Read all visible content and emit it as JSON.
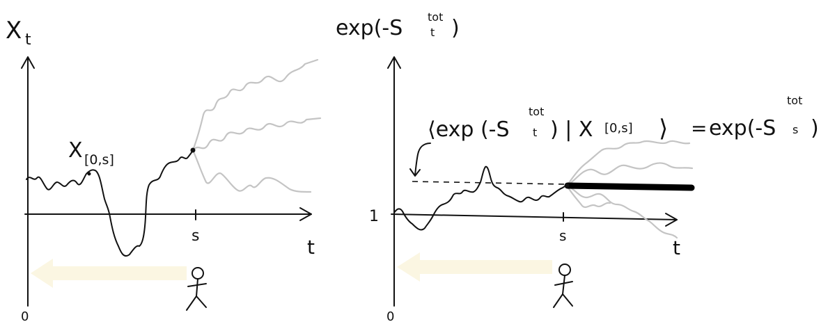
{
  "left_panel": {
    "y_label_main": "X",
    "y_label_sub": "t",
    "x_label": "t",
    "origin_label": "0",
    "s_label": "s",
    "path_label_main": "X",
    "path_label_sub": "[0,s]"
  },
  "right_panel": {
    "y_label_prefix": "exp(-S",
    "y_label_sup": "tot",
    "y_label_sub": "t",
    "y_label_suffix": ")",
    "x_label": "t",
    "origin_label": "0",
    "one_label": "1",
    "s_label": "s",
    "annot_lhs_open": "⟨exp (-S",
    "annot_lhs_sup": "tot",
    "annot_lhs_sub": "t",
    "annot_lhs_mid": ") | X",
    "annot_lhs_cond_sub": "[0,s]",
    "annot_lhs_close": "⟩",
    "annot_eq": "=",
    "annot_rhs_prefix": "exp(-S",
    "annot_rhs_sup": "tot",
    "annot_rhs_sub": "s",
    "annot_rhs_suffix": ")"
  },
  "colors": {
    "ink": "#111111",
    "future_paths": "#c4c4c4",
    "time_arrow": "#fbf6e2"
  },
  "icons": [
    "stick-figure-observer",
    "time-arrow-left"
  ]
}
